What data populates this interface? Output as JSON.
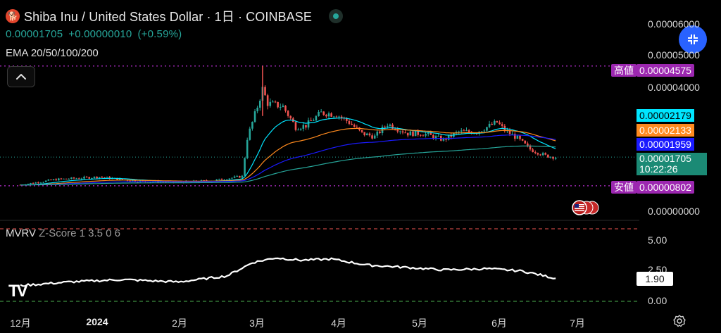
{
  "header": {
    "title": "Shiba Inu / United States Dollar · 1日 · COINBASE",
    "price": "0.00001705",
    "change": "+0.00000010",
    "change_pct": "(+0.59%)",
    "ema_label": "EMA 20/50/100/200"
  },
  "price_axis": {
    "ticks": [
      "0.00006000",
      "0.00005000",
      "0.00004000",
      "0.00000000"
    ]
  },
  "badges": {
    "high_label": "高値",
    "high_value": "0.00004575",
    "low_label": "安値",
    "low_value": "0.00000802",
    "ema_values": [
      {
        "value": "0.00002179",
        "color": "#00e5ff",
        "text_color": "#000000"
      },
      {
        "value": "0.00002133",
        "color": "#ff8a1e",
        "text_color": "#ffffff"
      },
      {
        "value": "0.00001959",
        "color": "#1a1aff",
        "text_color": "#ffffff"
      }
    ],
    "current_price": "0.00001705",
    "countdown": "10:22:26"
  },
  "mvrv": {
    "label": "MVRV",
    "params": "Z-Score 1 3.5 0 6",
    "value": "1.90",
    "ticks": [
      "5.00",
      "2.50",
      "0.00"
    ]
  },
  "time_axis": {
    "labels": [
      "12月",
      "2024",
      "2月",
      "3月",
      "4月",
      "5月",
      "6月",
      "7月"
    ]
  },
  "colors": {
    "up": "#26a69a",
    "down": "#ef5350",
    "ema20": "#00e5ff",
    "ema50": "#ff8a1e",
    "ema100": "#1a1aff",
    "ema200": "#26a69a",
    "level": "#9c27b0"
  },
  "chart_data": [
    {
      "type": "candlestick",
      "title": "Shiba Inu / United States Dollar · 1日 · COINBASE",
      "ylim": [
        0,
        6e-05
      ],
      "x_labels": [
        "12月",
        "2024",
        "2月",
        "3月",
        "4月",
        "5月",
        "6月",
        "7月"
      ],
      "close_path": [
        [
          "2023-12-01",
          8.3e-06
        ],
        [
          "2023-12-15",
          1e-05
        ],
        [
          "2024-01-01",
          1.08e-05
        ],
        [
          "2024-01-15",
          9.5e-06
        ],
        [
          "2024-02-01",
          9.1e-06
        ],
        [
          "2024-02-15",
          9.7e-06
        ],
        [
          "2024-02-26",
          1.1e-05
        ],
        [
          "2024-02-28",
          2.3e-05
        ],
        [
          "2024-03-03",
          3.3e-05
        ],
        [
          "2024-03-05",
          3.85e-05
        ],
        [
          "2024-03-07",
          3.4e-05
        ],
        [
          "2024-03-13",
          3.3e-05
        ],
        [
          "2024-03-18",
          2.65e-05
        ],
        [
          "2024-03-22",
          2.7e-05
        ],
        [
          "2024-03-28",
          3.1e-05
        ],
        [
          "2024-04-03",
          3.05e-05
        ],
        [
          "2024-04-08",
          2.8e-05
        ],
        [
          "2024-04-13",
          2.45e-05
        ],
        [
          "2024-04-18",
          2.35e-05
        ],
        [
          "2024-04-23",
          2.75e-05
        ],
        [
          "2024-05-01",
          2.45e-05
        ],
        [
          "2024-05-07",
          2.45e-05
        ],
        [
          "2024-05-15",
          2.25e-05
        ],
        [
          "2024-05-21",
          2.5e-05
        ],
        [
          "2024-05-28",
          2.5e-05
        ],
        [
          "2024-06-05",
          2.8e-05
        ],
        [
          "2024-06-08",
          2.55e-05
        ],
        [
          "2024-06-13",
          2.3e-05
        ],
        [
          "2024-06-18",
          1.95e-05
        ],
        [
          "2024-06-24",
          1.75e-05
        ],
        [
          "2024-06-28",
          1.7e-05
        ]
      ],
      "high": 4.575e-05,
      "low": 8.02e-06,
      "last": 1.705e-05,
      "series": [
        {
          "name": "EMA 20",
          "last": 2.179e-05
        },
        {
          "name": "EMA 50",
          "last": 2.133e-05
        },
        {
          "name": "EMA 100",
          "last": 1.959e-05
        },
        {
          "name": "EMA 200"
        }
      ]
    },
    {
      "type": "line",
      "title": "MVRV Z-Score 1 3.5 0 6",
      "ylim": [
        0,
        6
      ],
      "yticks": [
        0,
        2.5,
        5
      ],
      "reference_lines": [
        0,
        6
      ],
      "x": [
        "2023-12-01",
        "2023-12-20",
        "2024-01-10",
        "2024-02-01",
        "2024-02-20",
        "2024-03-01",
        "2024-03-10",
        "2024-03-20",
        "2024-04-01",
        "2024-04-15",
        "2024-05-01",
        "2024-05-15",
        "2024-06-01",
        "2024-06-15",
        "2024-06-28"
      ],
      "values": [
        1.3,
        1.6,
        1.8,
        1.6,
        2.1,
        3.2,
        3.6,
        3.4,
        3.5,
        3.0,
        2.8,
        2.6,
        2.7,
        2.5,
        1.9
      ],
      "last": 1.9
    }
  ]
}
